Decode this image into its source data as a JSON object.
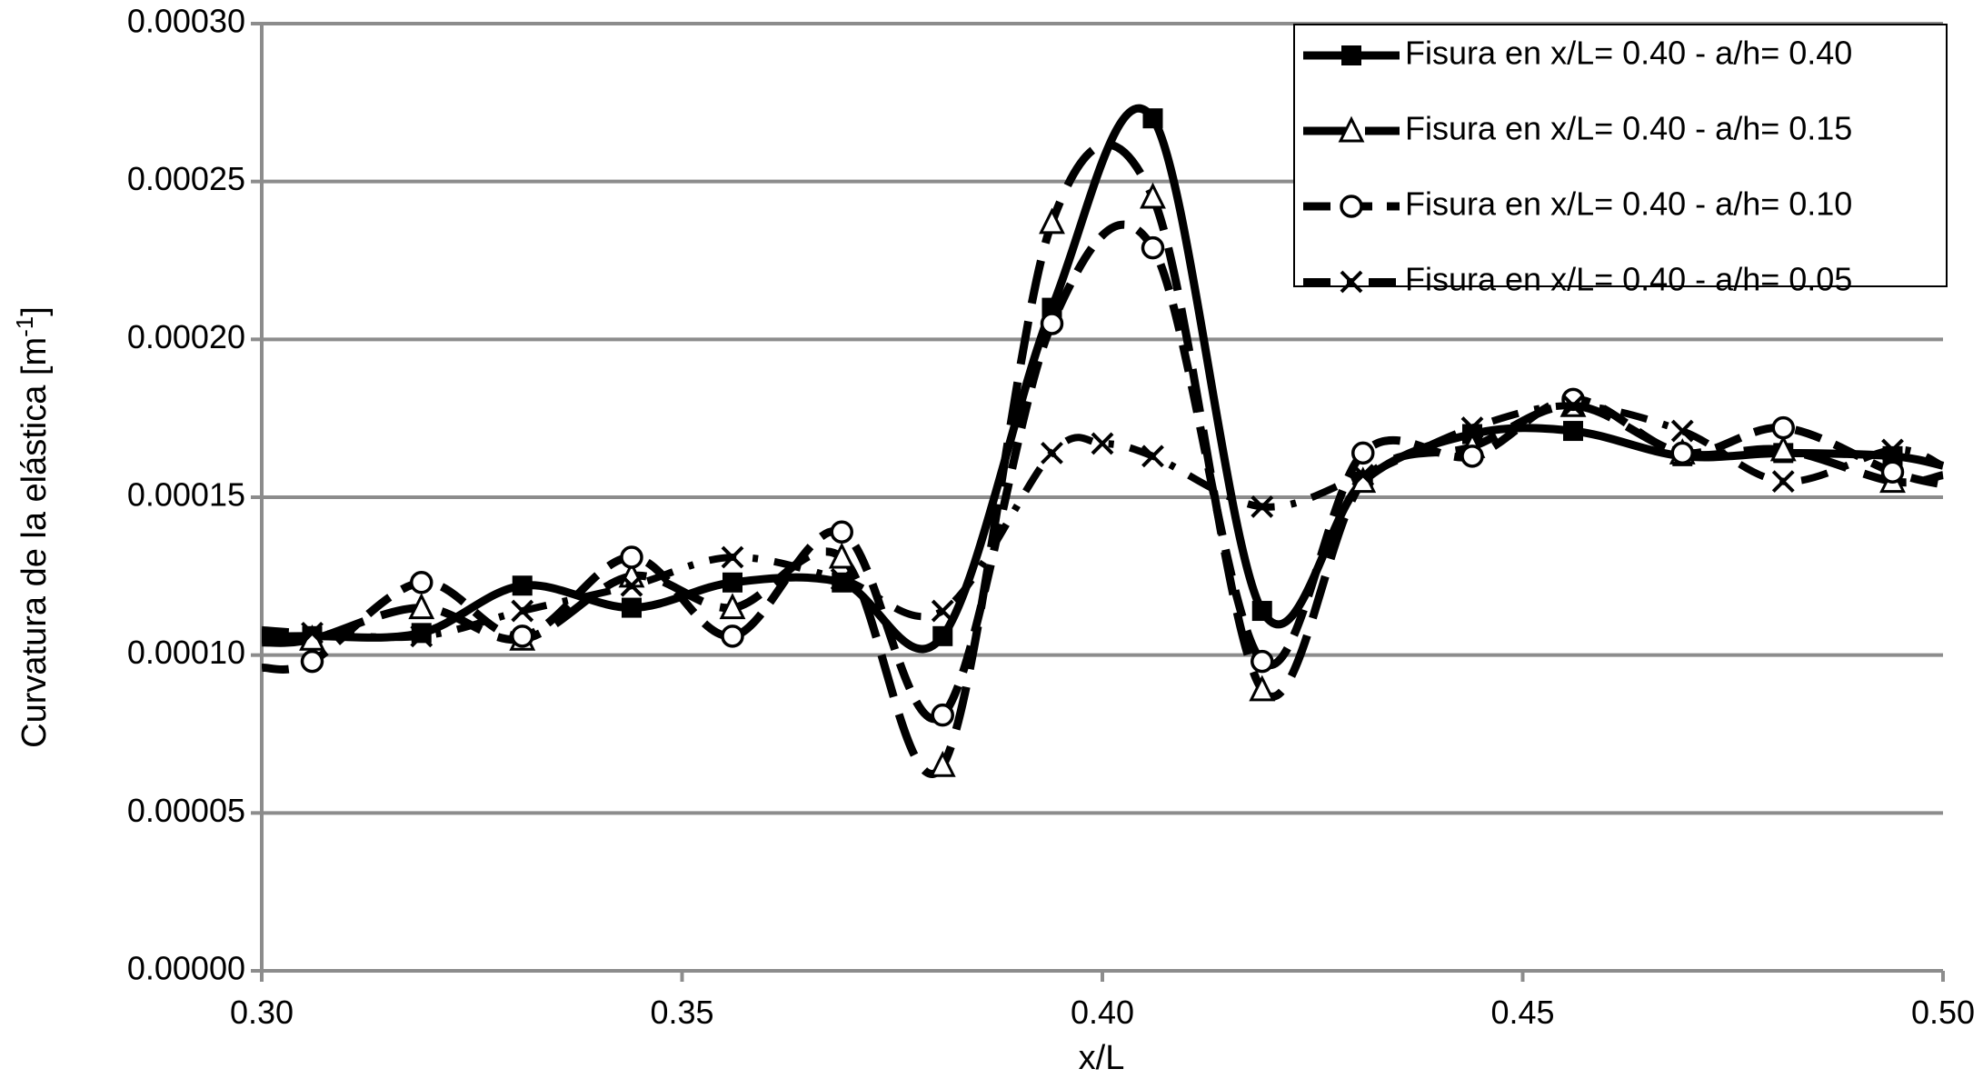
{
  "chart_data": {
    "type": "line",
    "title": "",
    "xlabel": "x/L",
    "ylabel": "Curvatura de la elástica [m",
    "ylabel_superscript": "-1",
    "ylabel_suffix": "]",
    "xlim": [
      0.3,
      0.5
    ],
    "ylim": [
      0.0,
      0.0003
    ],
    "x_ticks": [
      "0.30",
      "0.35",
      "0.40",
      "0.45",
      "0.50"
    ],
    "y_ticks": [
      "0.00000",
      "0.00005",
      "0.00010",
      "0.00015",
      "0.00020",
      "0.00025",
      "0.00030"
    ],
    "grid": "horizontal",
    "legend_position": "top-right",
    "series": [
      {
        "name": "Fisura en x/L= 0.40 - a/h= 0.40",
        "marker": "square",
        "style": "solid",
        "x": [
          0.3,
          0.306,
          0.319,
          0.331,
          0.344,
          0.356,
          0.369,
          0.381,
          0.394,
          0.406,
          0.419,
          0.431,
          0.444,
          0.456,
          0.469,
          0.481,
          0.494,
          0.5
        ],
        "y": [
          0.000106,
          0.000106,
          0.000107,
          0.000122,
          0.000115,
          0.000123,
          0.000123,
          0.000106,
          0.00021,
          0.00027,
          0.000114,
          0.000155,
          0.00017,
          0.000171,
          0.000163,
          0.000164,
          0.000163,
          0.00016
        ]
      },
      {
        "name": "Fisura en x/L= 0.40 - a/h= 0.15",
        "marker": "triangle",
        "style": "long-dash",
        "x": [
          0.3,
          0.306,
          0.319,
          0.331,
          0.344,
          0.356,
          0.369,
          0.381,
          0.394,
          0.406,
          0.419,
          0.431,
          0.444,
          0.456,
          0.469,
          0.481,
          0.494,
          0.5
        ],
        "y": [
          0.000104,
          0.000105,
          0.000115,
          0.000105,
          0.000125,
          0.000115,
          0.000131,
          6.5e-05,
          0.000237,
          0.000245,
          8.9e-05,
          0.000155,
          0.000166,
          0.000179,
          0.000164,
          0.000165,
          0.000155,
          0.000157
        ]
      },
      {
        "name": "Fisura en x/L= 0.40 - a/h= 0.10",
        "marker": "circle",
        "style": "dash",
        "x": [
          0.3,
          0.306,
          0.319,
          0.331,
          0.344,
          0.356,
          0.369,
          0.381,
          0.394,
          0.406,
          0.419,
          0.431,
          0.444,
          0.456,
          0.469,
          0.481,
          0.494,
          0.5
        ],
        "y": [
          9.6e-05,
          9.8e-05,
          0.000123,
          0.000106,
          0.000131,
          0.000106,
          0.000139,
          8.1e-05,
          0.000205,
          0.000229,
          9.8e-05,
          0.000164,
          0.000163,
          0.000181,
          0.000164,
          0.000172,
          0.000158,
          0.000154
        ]
      },
      {
        "name": "Fisura en x/L= 0.40 - a/h= 0.05",
        "marker": "x",
        "style": "dash-dot",
        "x": [
          0.3,
          0.306,
          0.319,
          0.331,
          0.344,
          0.356,
          0.369,
          0.381,
          0.394,
          0.4,
          0.406,
          0.419,
          0.431,
          0.444,
          0.456,
          0.469,
          0.481,
          0.494,
          0.5
        ],
        "y": [
          0.000108,
          0.000107,
          0.000106,
          0.000114,
          0.000122,
          0.000131,
          0.000124,
          0.000114,
          0.000164,
          0.000167,
          0.000163,
          0.000147,
          0.000157,
          0.000172,
          0.000179,
          0.000171,
          0.000155,
          0.000165,
          0.00016
        ]
      }
    ]
  }
}
